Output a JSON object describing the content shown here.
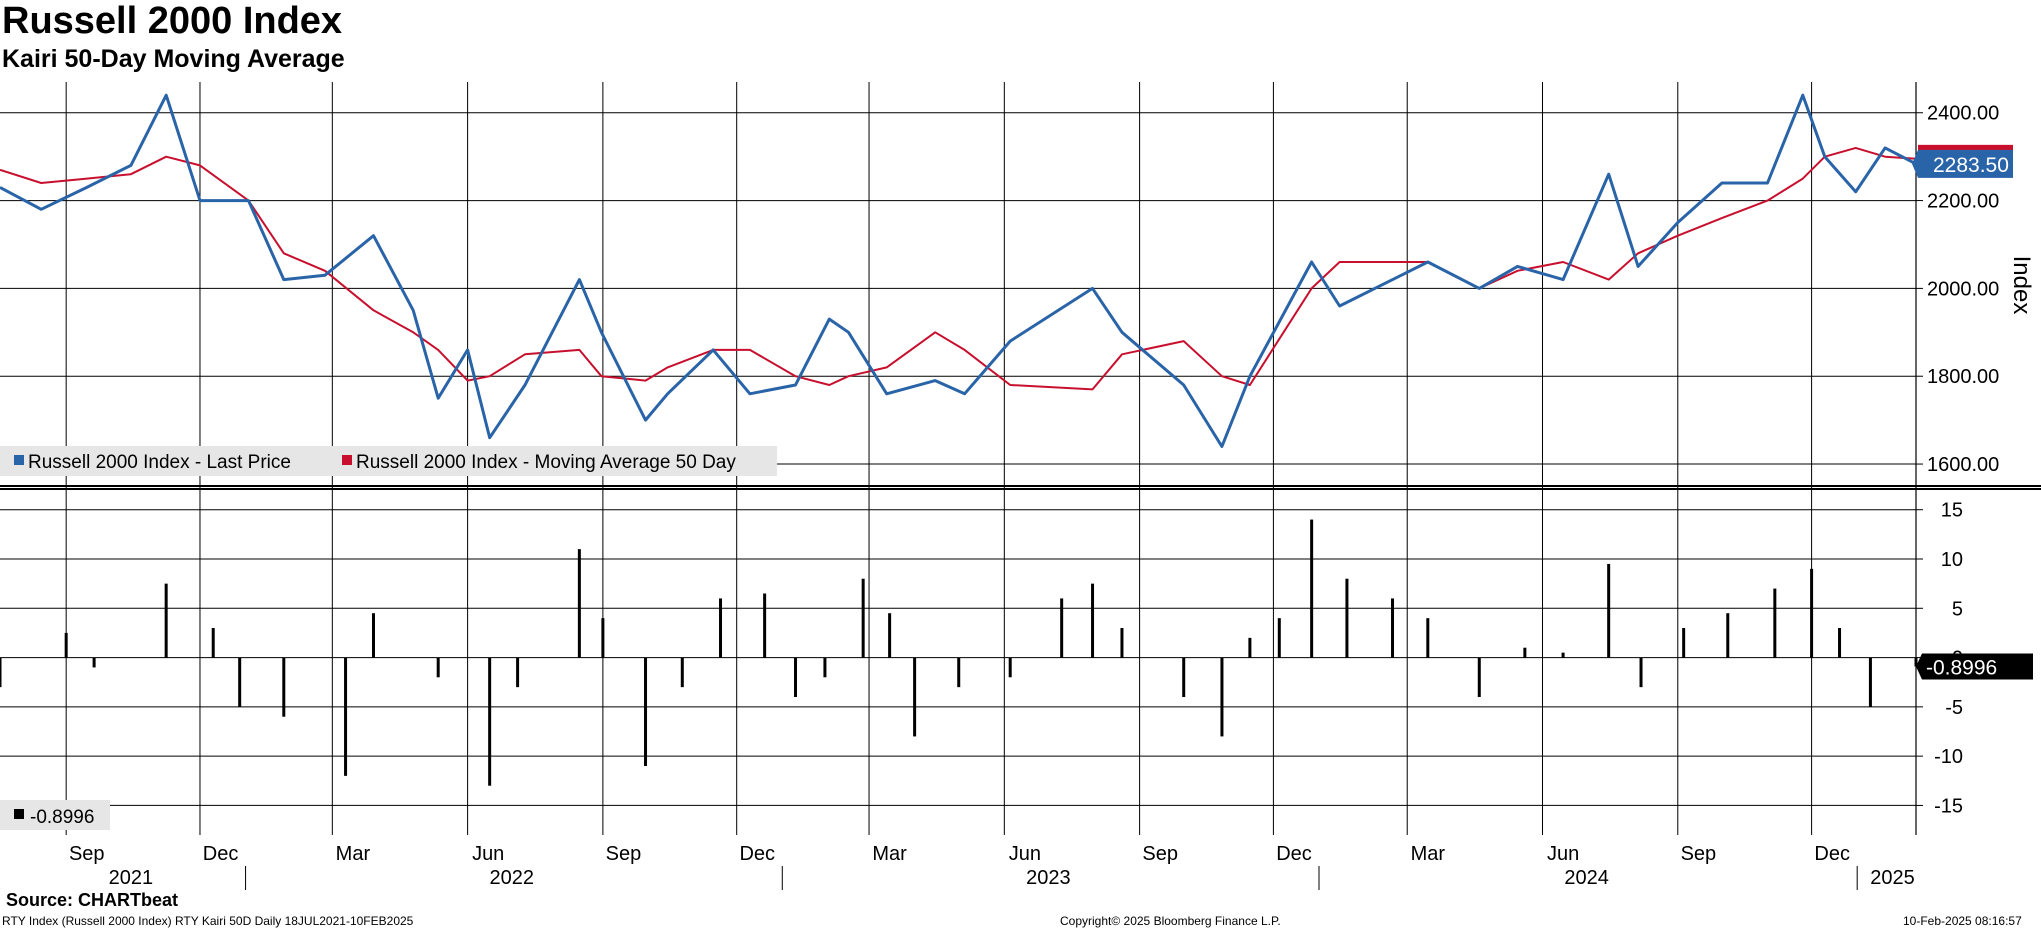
{
  "title": "Russell 2000 Index",
  "subtitle": "Kairi 50-Day Moving Average",
  "source": "Source: CHARTbeat",
  "footer": {
    "left": "RTY Index (Russell 2000 Index) RTY Kairi 50D  Daily 18JUL2021-10FEB2025",
    "center": "Copyright© 2025 Bloomberg Finance L.P.",
    "right": "10-Feb-2025 08:16:57"
  },
  "colors": {
    "price": "#2a64a8",
    "ma": "#c8102e",
    "kairi": "#000000",
    "grid": "#000000"
  },
  "chart_data": [
    {
      "type": "line",
      "ylabel": "Index",
      "ylim": [
        1550,
        2470
      ],
      "yticks": [
        "1600.00",
        "1800.00",
        "2000.00",
        "2200.00",
        "2400.00"
      ],
      "ytick_values": [
        1600,
        1800,
        2000,
        2200,
        2400
      ],
      "last_price_label": "2283.50",
      "legend": [
        "Russell 2000 Index - Last Price",
        "Russell 2000 Index - Moving Average 50 Day"
      ],
      "legend_placement": "bottom-left",
      "grid": true,
      "x": [
        "2021-07-18",
        "2021-08-15",
        "2021-09-15",
        "2021-10-15",
        "2021-11-08",
        "2021-12-01",
        "2022-01-03",
        "2022-01-27",
        "2022-02-24",
        "2022-03-29",
        "2022-04-25",
        "2022-05-12",
        "2022-06-01",
        "2022-06-16",
        "2022-07-10",
        "2022-08-16",
        "2022-08-31",
        "2022-09-30",
        "2022-10-15",
        "2022-11-15",
        "2022-12-10",
        "2023-01-10",
        "2023-02-02",
        "2023-02-15",
        "2023-03-13",
        "2023-04-15",
        "2023-05-05",
        "2023-06-05",
        "2023-07-31",
        "2023-08-20",
        "2023-10-01",
        "2023-10-27",
        "2023-11-15",
        "2023-12-27",
        "2024-01-15",
        "2024-03-15",
        "2024-04-19",
        "2024-05-15",
        "2024-06-15",
        "2024-07-16",
        "2024-08-05",
        "2024-09-01",
        "2024-10-01",
        "2024-11-01",
        "2024-11-25",
        "2024-12-10",
        "2024-12-31",
        "2025-01-20",
        "2025-02-10"
      ],
      "series": [
        {
          "name": "Russell 2000 Index - Last Price",
          "values": [
            2230,
            2180,
            2230,
            2280,
            2440,
            2200,
            2200,
            2020,
            2030,
            2120,
            1950,
            1750,
            1860,
            1660,
            1780,
            2020,
            1900,
            1700,
            1760,
            1860,
            1760,
            1780,
            1930,
            1900,
            1760,
            1790,
            1760,
            1880,
            2000,
            1900,
            1780,
            1640,
            1800,
            2060,
            1960,
            2060,
            2000,
            2050,
            2020,
            2260,
            2050,
            2150,
            2240,
            2240,
            2440,
            2300,
            2220,
            2320,
            2283.5
          ]
        },
        {
          "name": "Russell 2000 Index - Moving Average 50 Day",
          "values": [
            2270,
            2240,
            2250,
            2260,
            2300,
            2280,
            2200,
            2080,
            2040,
            1950,
            1900,
            1860,
            1790,
            1800,
            1850,
            1860,
            1800,
            1790,
            1820,
            1860,
            1860,
            1800,
            1780,
            1800,
            1820,
            1900,
            1860,
            1780,
            1770,
            1850,
            1880,
            1800,
            1780,
            2000,
            2060,
            2060,
            2000,
            2040,
            2060,
            2020,
            2080,
            2120,
            2160,
            2200,
            2250,
            2300,
            2320,
            2300,
            2295
          ]
        }
      ]
    },
    {
      "type": "bar",
      "name": "Kairi",
      "ylim": [
        -18,
        17
      ],
      "yticks": [
        "15",
        "10",
        "5",
        "0",
        "-5",
        "-10",
        "-15"
      ],
      "ytick_values": [
        15,
        10,
        5,
        0,
        -5,
        -10,
        -15
      ],
      "last_value_label": "-0.8996",
      "legend": [
        "-0.8996"
      ],
      "legend_placement": "bottom-left",
      "grid": true,
      "x": [
        "2021-07-18",
        "2021-09-01",
        "2021-09-20",
        "2021-11-08",
        "2021-12-10",
        "2021-12-28",
        "2022-01-27",
        "2022-03-10",
        "2022-03-29",
        "2022-05-12",
        "2022-06-16",
        "2022-07-05",
        "2022-08-16",
        "2022-09-01",
        "2022-09-30",
        "2022-10-25",
        "2022-11-20",
        "2022-12-20",
        "2023-01-10",
        "2023-01-30",
        "2023-02-25",
        "2023-03-15",
        "2023-04-01",
        "2023-05-01",
        "2023-06-05",
        "2023-07-10",
        "2023-07-31",
        "2023-08-20",
        "2023-10-01",
        "2023-10-27",
        "2023-11-15",
        "2023-12-05",
        "2023-12-27",
        "2024-01-20",
        "2024-02-20",
        "2024-03-15",
        "2024-04-19",
        "2024-05-20",
        "2024-06-15",
        "2024-07-16",
        "2024-08-07",
        "2024-09-05",
        "2024-10-05",
        "2024-11-06",
        "2024-12-01",
        "2024-12-20",
        "2025-01-10",
        "2025-02-10"
      ],
      "values": [
        -3,
        2.5,
        -1,
        7.5,
        3,
        -5,
        -6,
        -12,
        4.5,
        -2,
        -13,
        -3,
        11,
        4,
        -11,
        -3,
        6,
        6.5,
        -4,
        -2,
        8,
        4.5,
        -8,
        -3,
        -2,
        6,
        7.5,
        3,
        -4,
        -8,
        2,
        4,
        14,
        8,
        6,
        4,
        -4,
        1,
        0.5,
        9.5,
        -3,
        3,
        4.5,
        7,
        9,
        3,
        -5,
        -0.8996
      ]
    }
  ],
  "x_axis": {
    "months": [
      "Sep",
      "Dec",
      "Mar",
      "Jun",
      "Sep",
      "Dec",
      "Mar",
      "Jun",
      "Sep",
      "Dec",
      "Mar",
      "Jun",
      "Sep",
      "Dec"
    ],
    "years": [
      "2021",
      "2022",
      "2023",
      "2024",
      "2025"
    ]
  }
}
